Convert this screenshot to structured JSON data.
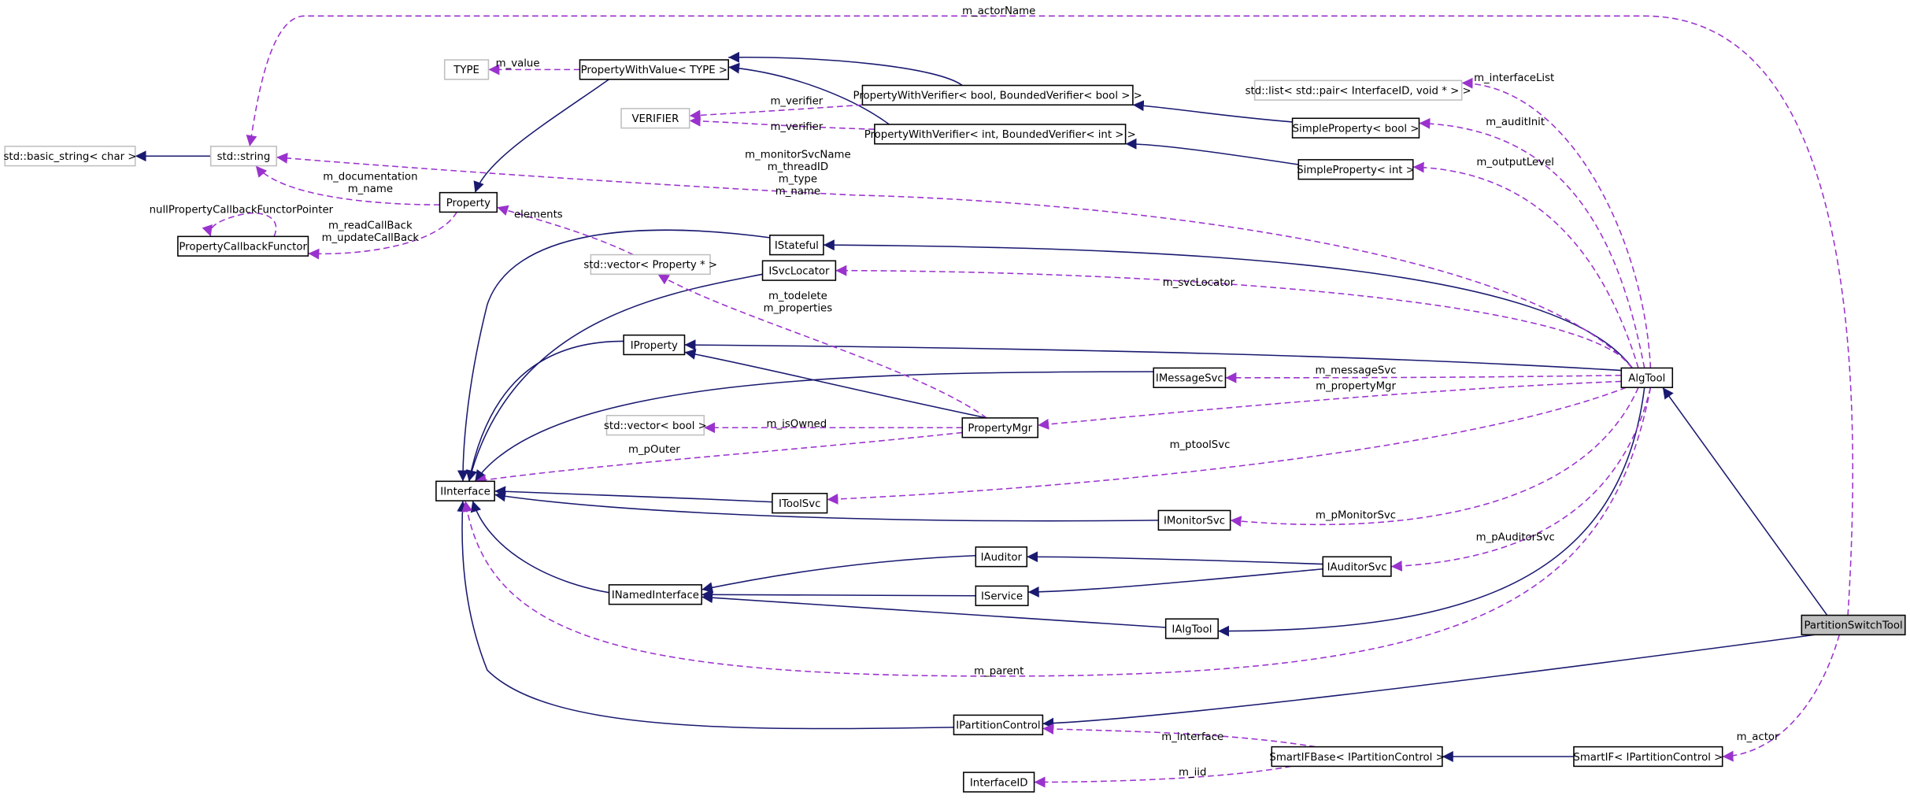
{
  "nodes": [
    {
      "label": "PartitionSwitchTool"
    },
    {
      "label": "AlgTool"
    },
    {
      "label": "IPartitionControl"
    },
    {
      "label": "SmartIF< IPartitionControl >"
    },
    {
      "label": "SmartIFBase< IPartitionControl >"
    },
    {
      "label": "InterfaceID"
    },
    {
      "label": "IInterface"
    },
    {
      "label": "INamedInterface"
    },
    {
      "label": "IAlgTool"
    },
    {
      "label": "IService"
    },
    {
      "label": "IAuditor"
    },
    {
      "label": "IAuditorSvc"
    },
    {
      "label": "IMonitorSvc"
    },
    {
      "label": "IToolSvc"
    },
    {
      "label": "PropertyMgr"
    },
    {
      "label": "std::vector< bool >"
    },
    {
      "label": "IMessageSvc"
    },
    {
      "label": "IProperty"
    },
    {
      "label": "std::vector< Property * >"
    },
    {
      "label": "ISvcLocator"
    },
    {
      "label": "IStateful"
    },
    {
      "label": "Property"
    },
    {
      "label": "PropertyCallbackFunctor"
    },
    {
      "label": "std::string"
    },
    {
      "label": "std::basic_string< char >"
    },
    {
      "label": "TYPE"
    },
    {
      "label": "PropertyWithValue< TYPE >"
    },
    {
      "label": "VERIFIER"
    },
    {
      "label": "PropertyWithVerifier< bool, BoundedVerifier< bool > >"
    },
    {
      "label": "PropertyWithVerifier< int, BoundedVerifier< int > >"
    },
    {
      "label": "SimpleProperty< bool >"
    },
    {
      "label": "SimpleProperty< int >"
    },
    {
      "label": "std::list< std::pair< InterfaceID, void * > >"
    }
  ],
  "edge_labels": [
    [
      "m_actorName"
    ],
    [
      "m_value"
    ],
    [
      "m_verifier"
    ],
    [
      "m_verifier"
    ],
    [
      "m_interfaceList"
    ],
    [
      "m_auditInit"
    ],
    [
      "m_outputLevel"
    ],
    [
      "m_monitorSvcName",
      "m_threadID",
      "m_type",
      "m_name"
    ],
    [
      "m_documentation",
      "m_name"
    ],
    [
      "nullPropertyCallbackFunctorPointer"
    ],
    [
      "m_readCallBack",
      "m_updateCallBack"
    ],
    [
      "elements"
    ],
    [
      "m_svcLocator"
    ],
    [
      "m_todelete",
      "m_properties"
    ],
    [
      "m_messageSvc"
    ],
    [
      "m_propertyMgr"
    ],
    [
      "m_isOwned"
    ],
    [
      "m_pOuter"
    ],
    [
      "m_ptoolSvc"
    ],
    [
      "m_pMonitorSvc"
    ],
    [
      "m_pAuditorSvc"
    ],
    [
      "m_parent"
    ],
    [
      "m_interface"
    ],
    [
      "m_iid"
    ],
    [
      "m_actor"
    ]
  ]
}
